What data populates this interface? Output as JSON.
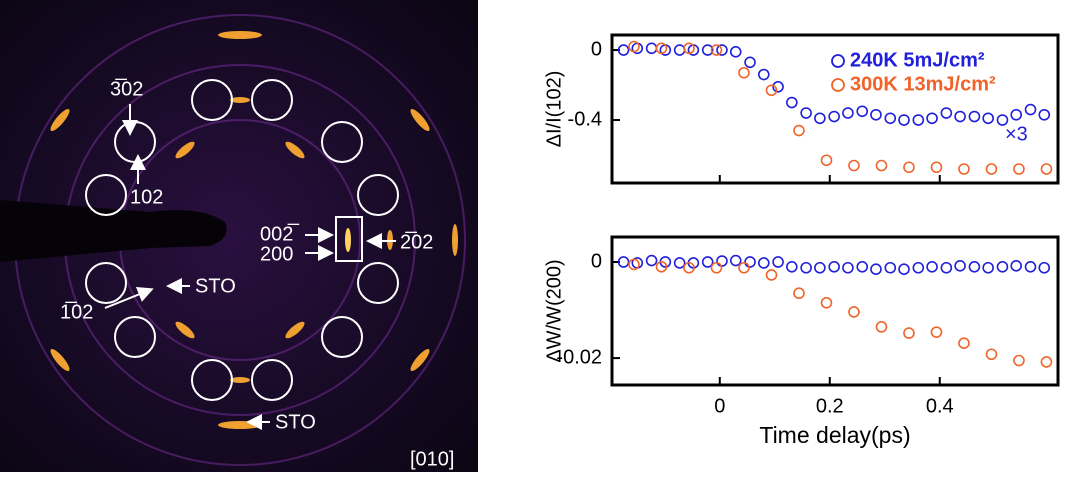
{
  "diffraction": {
    "labels": [
      "3̅02",
      "102",
      "002̅",
      "200",
      "2̅02",
      "STO",
      "1̅02",
      "STO"
    ],
    "zone_axis": "[010]"
  },
  "chart_data": [
    {
      "type": "scatter",
      "y_label": "ΔI/I(102)",
      "annotation": "×3",
      "legend": "top-right",
      "xlim": [
        -0.196,
        0.615
      ],
      "ylim": [
        -0.76,
        0.086
      ],
      "yticks": [
        0,
        -0.4
      ],
      "series": [
        {
          "name": "240K 5mJ/cm²",
          "color": "#1f1fdc",
          "x": [
            -0.175,
            -0.15,
            -0.124,
            -0.099,
            -0.073,
            -0.048,
            -0.022,
            0.004,
            0.029,
            0.055,
            0.08,
            0.106,
            0.131,
            0.157,
            0.182,
            0.208,
            0.233,
            0.259,
            0.284,
            0.31,
            0.335,
            0.361,
            0.386,
            0.412,
            0.437,
            0.463,
            0.488,
            0.514,
            0.539,
            0.565,
            0.59
          ],
          "values": [
            0,
            0.01,
            0.01,
            0,
            0,
            0,
            0,
            0,
            -0.01,
            -0.07,
            -0.14,
            -0.21,
            -0.3,
            -0.36,
            -0.39,
            -0.38,
            -0.36,
            -0.35,
            -0.37,
            -0.39,
            -0.4,
            -0.4,
            -0.39,
            -0.36,
            -0.38,
            -0.38,
            -0.39,
            -0.4,
            -0.37,
            -0.34,
            -0.37
          ]
        },
        {
          "name": "300K 13mJ/cm²",
          "color": "#f0642a",
          "x": [
            -0.156,
            -0.106,
            -0.056,
            -0.006,
            0.044,
            0.094,
            0.144,
            0.194,
            0.244,
            0.294,
            0.344,
            0.394,
            0.444,
            0.494,
            0.544,
            0.594
          ],
          "values": [
            0.02,
            0.01,
            0.01,
            0,
            -0.13,
            -0.23,
            -0.46,
            -0.63,
            -0.66,
            -0.66,
            -0.67,
            -0.67,
            -0.68,
            -0.68,
            -0.68,
            -0.68
          ]
        }
      ]
    },
    {
      "type": "scatter",
      "y_label": "ΔW/W(200)",
      "x_label": "Time delay(ps)",
      "xlim": [
        -0.196,
        0.615
      ],
      "ylim": [
        -0.0256,
        0.0052
      ],
      "xticks": [
        0,
        0.2,
        0.4
      ],
      "yticks": [
        0,
        -0.02
      ],
      "series": [
        {
          "color": "#1f1fdc",
          "x": [
            -0.175,
            -0.15,
            -0.124,
            -0.099,
            -0.073,
            -0.048,
            -0.022,
            0.004,
            0.029,
            0.055,
            0.08,
            0.106,
            0.131,
            0.157,
            0.182,
            0.208,
            0.233,
            0.259,
            0.284,
            0.31,
            0.335,
            0.361,
            0.386,
            0.412,
            0.437,
            0.463,
            0.488,
            0.514,
            0.539,
            0.565,
            0.59
          ],
          "values": [
            0,
            -0.0002,
            0.0003,
            0,
            -0.0002,
            -0.0002,
            0,
            0.0002,
            0.0003,
            0,
            -0.0002,
            0,
            -0.001,
            -0.0012,
            -0.0012,
            -0.001,
            -0.0012,
            -0.001,
            -0.0015,
            -0.0012,
            -0.0015,
            -0.0012,
            -0.001,
            -0.0012,
            -0.0008,
            -0.001,
            -0.0012,
            -0.001,
            -0.0008,
            -0.001,
            -0.0012
          ]
        },
        {
          "color": "#f0642a",
          "x": [
            -0.156,
            -0.106,
            -0.056,
            -0.006,
            0.044,
            0.094,
            0.144,
            0.194,
            0.244,
            0.294,
            0.344,
            0.394,
            0.444,
            0.494,
            0.544,
            0.594
          ],
          "values": [
            -0.0005,
            -0.001,
            -0.0012,
            -0.0012,
            -0.0012,
            -0.0027,
            -0.0065,
            -0.0085,
            -0.0104,
            -0.0135,
            -0.0148,
            -0.0146,
            -0.0169,
            -0.0192,
            -0.0205,
            -0.0208
          ]
        }
      ]
    }
  ]
}
